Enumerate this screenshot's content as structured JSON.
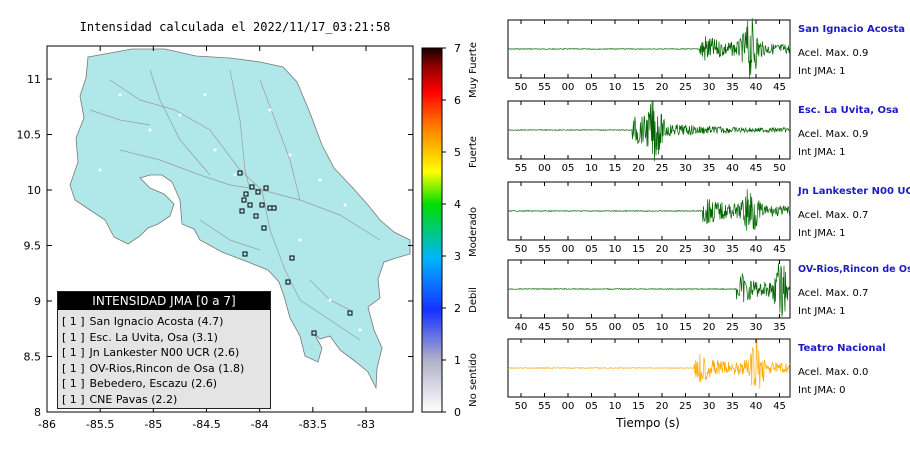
{
  "map": {
    "title": "Intensidad calculada el 2022/11/17_03:21:58",
    "x_ticks": [
      "-86",
      "-85.5",
      "-85",
      "-84.5",
      "-84",
      "-83.5",
      "-83"
    ],
    "y_ticks": [
      "8",
      "8.5",
      "9",
      "9.5",
      "10",
      "10.5",
      "11"
    ],
    "land_color": "#b0e8ea",
    "water_color": "#ffffff"
  },
  "colorbar": {
    "ticks": [
      "0",
      "1",
      "2",
      "3",
      "4",
      "5",
      "6",
      "7"
    ],
    "categories": [
      "No sentido",
      "Debil",
      "Moderado",
      "Fuerte",
      "Muy Fuerte"
    ]
  },
  "legend": {
    "title": "INTENSIDAD JMA [0 a 7]",
    "items": [
      {
        "jma": "[ 1 ]",
        "label": "San Ignacio Acosta (4.7)"
      },
      {
        "jma": "[ 1 ]",
        "label": "Esc. La Uvita, Osa (3.1)"
      },
      {
        "jma": "[ 1 ]",
        "label": "Jn Lankester N00 UCR (2.6)"
      },
      {
        "jma": "[ 1 ]",
        "label": "OV-Rios,Rincon de Osa (1.8)"
      },
      {
        "jma": "[ 1 ]",
        "label": "Bebedero, Escazu (2.6)"
      },
      {
        "jma": "[ 1 ]",
        "label": "CNE Pavas (2.2)"
      }
    ]
  },
  "chart_data": {
    "type": "line",
    "xlabel": "Tiempo (s)",
    "series": [
      {
        "name": "San Ignacio Acosta",
        "accel_label": "Acel. Max. 0.9",
        "jma_label": "Int JMA: 1",
        "color": "#006400",
        "x_ticks": [
          "50",
          "55",
          "00",
          "05",
          "10",
          "15",
          "20",
          "25",
          "30",
          "35",
          "40",
          "45"
        ],
        "onset": 0.68,
        "peak": 0.86,
        "amplitude": 1.0
      },
      {
        "name": "Esc. La Uvita, Osa",
        "accel_label": "Acel. Max. 0.9",
        "jma_label": "Int JMA: 1",
        "color": "#006400",
        "x_ticks": [
          "55",
          "00",
          "05",
          "10",
          "15",
          "20",
          "25",
          "30",
          "35",
          "40",
          "45",
          "50"
        ],
        "onset": 0.44,
        "peak": 0.52,
        "amplitude": 0.9
      },
      {
        "name": "Jn Lankester N00 UCR",
        "accel_label": "Acel. Max. 0.7",
        "jma_label": "Int JMA: 1",
        "color": "#006400",
        "x_ticks": [
          "50",
          "55",
          "00",
          "05",
          "10",
          "15",
          "20",
          "25",
          "30",
          "35",
          "40",
          "45"
        ],
        "onset": 0.69,
        "peak": 0.86,
        "amplitude": 0.8
      },
      {
        "name": "OV-Rios,Rincon de Osa",
        "accel_label": "Acel. Max. 0.7",
        "jma_label": "Int JMA: 1",
        "color": "#006400",
        "x_ticks": [
          "40",
          "45",
          "50",
          "55",
          "00",
          "05",
          "10",
          "15",
          "20",
          "25",
          "30",
          "35"
        ],
        "onset": 0.81,
        "peak": 0.97,
        "amplitude": 0.9
      },
      {
        "name": "Teatro Nacional",
        "accel_label": "Acel. Max. 0.0",
        "jma_label": "Int JMA: 0",
        "color": "#ffaa00",
        "x_ticks": [
          "50",
          "55",
          "00",
          "05",
          "10",
          "15",
          "20",
          "25",
          "30",
          "35",
          "40",
          "45"
        ],
        "onset": 0.66,
        "peak": 0.88,
        "amplitude": 0.85
      }
    ]
  }
}
